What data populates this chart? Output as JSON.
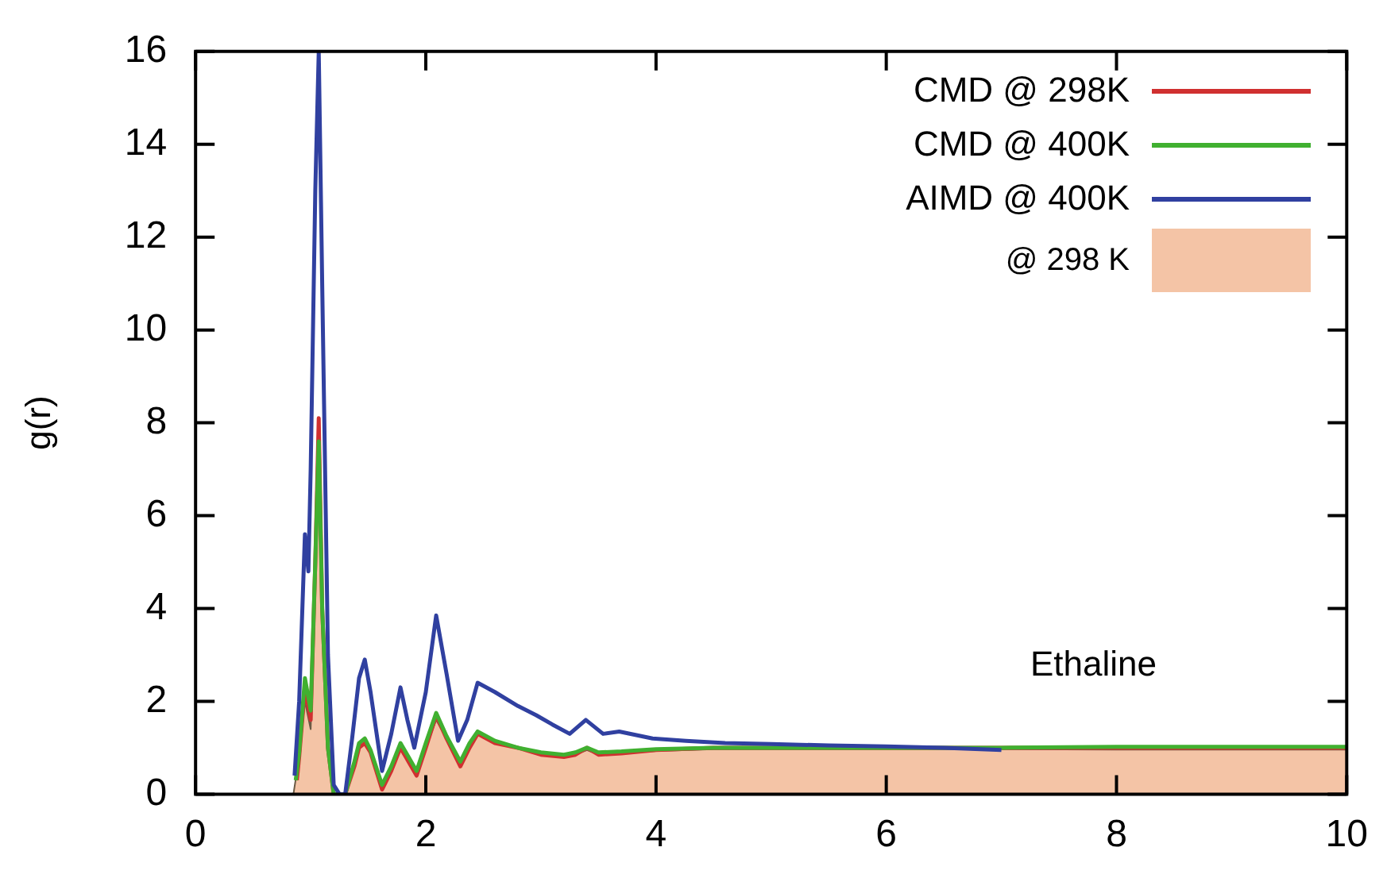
{
  "chart_data": {
    "type": "line",
    "ylabel": "g(r)",
    "xlim": [
      0,
      10
    ],
    "ylim": [
      0,
      16
    ],
    "xticks": [
      0,
      2,
      4,
      6,
      8,
      10
    ],
    "yticks": [
      0,
      2,
      4,
      6,
      8,
      10,
      12,
      14,
      16
    ],
    "legend": "top right",
    "annotations": [
      "Ethaline"
    ],
    "series": [
      {
        "name": "CMD @ 298K",
        "color": "#d03030",
        "x": [
          0.88,
          0.9,
          0.95,
          1.0,
          1.04,
          1.07,
          1.1,
          1.15,
          1.2,
          1.3,
          1.38,
          1.42,
          1.47,
          1.52,
          1.62,
          1.7,
          1.78,
          1.85,
          1.92,
          2.0,
          2.09,
          2.18,
          2.3,
          2.38,
          2.45,
          2.6,
          2.8,
          3.0,
          3.2,
          3.3,
          3.4,
          3.5,
          3.7,
          4.0,
          4.5,
          5.0,
          6.0,
          7.0,
          8.0,
          9.0,
          10.0
        ],
        "values": [
          0.3,
          0.8,
          2.3,
          1.6,
          5.0,
          8.1,
          4.0,
          1.0,
          0,
          0,
          0.6,
          1.0,
          1.1,
          0.9,
          0.1,
          0.5,
          1.0,
          0.7,
          0.4,
          1.0,
          1.7,
          1.2,
          0.6,
          1.0,
          1.3,
          1.1,
          1.0,
          0.85,
          0.8,
          0.85,
          1.0,
          0.85,
          0.88,
          0.95,
          1.0,
          1.0,
          1.0,
          1.0,
          1.0,
          1.0,
          1.0
        ]
      },
      {
        "name": "CMD @ 400K",
        "color": "#40b030",
        "x": [
          0.87,
          0.9,
          0.95,
          1.0,
          1.04,
          1.07,
          1.1,
          1.15,
          1.2,
          1.3,
          1.38,
          1.42,
          1.47,
          1.52,
          1.62,
          1.7,
          1.78,
          1.85,
          1.92,
          2.0,
          2.09,
          2.18,
          2.3,
          2.38,
          2.45,
          2.6,
          2.8,
          3.0,
          3.2,
          3.3,
          3.4,
          3.5,
          3.7,
          4.0,
          4.5,
          5.0,
          6.0,
          7.0,
          8.0,
          9.0,
          10.0
        ],
        "values": [
          0.3,
          0.9,
          2.5,
          1.8,
          5.0,
          7.6,
          4.0,
          1.0,
          0,
          0,
          0.7,
          1.1,
          1.2,
          0.95,
          0.2,
          0.6,
          1.1,
          0.8,
          0.5,
          1.1,
          1.75,
          1.25,
          0.7,
          1.1,
          1.35,
          1.15,
          1.0,
          0.9,
          0.85,
          0.9,
          1.0,
          0.9,
          0.92,
          0.97,
          1.0,
          1.0,
          1.0,
          1.0,
          1.02,
          1.02,
          1.02
        ]
      },
      {
        "name": "AIMD @ 400K",
        "color": "#3040a0",
        "x": [
          0.86,
          0.9,
          0.95,
          0.98,
          1.0,
          1.04,
          1.07,
          1.1,
          1.15,
          1.2,
          1.25,
          1.3,
          1.36,
          1.42,
          1.47,
          1.52,
          1.62,
          1.7,
          1.78,
          1.84,
          1.9,
          2.0,
          2.09,
          2.18,
          2.28,
          2.36,
          2.45,
          2.6,
          2.8,
          2.96,
          3.1,
          3.25,
          3.39,
          3.54,
          3.68,
          3.97,
          4.26,
          4.6,
          5.0,
          5.5,
          6.0,
          6.5,
          7.0
        ],
        "values": [
          0.4,
          2.0,
          5.6,
          4.8,
          7.0,
          13.0,
          16.0,
          11.0,
          3.0,
          0.2,
          0,
          0,
          1.2,
          2.5,
          2.9,
          2.2,
          0.5,
          1.3,
          2.3,
          1.6,
          1.0,
          2.2,
          3.85,
          2.6,
          1.15,
          1.6,
          2.4,
          2.2,
          1.9,
          1.7,
          1.5,
          1.3,
          1.6,
          1.3,
          1.35,
          1.2,
          1.15,
          1.1,
          1.08,
          1.05,
          1.03,
          1.0,
          0.95
        ]
      },
      {
        "name": "@ 298 K",
        "type": "area",
        "color": "#f4c4a6",
        "x": [
          0,
          0.85,
          0.9,
          0.95,
          1.0,
          1.04,
          1.07,
          1.1,
          1.15,
          1.2,
          1.3,
          1.38,
          1.42,
          1.47,
          1.52,
          1.62,
          1.7,
          1.78,
          1.85,
          1.92,
          2.0,
          2.09,
          2.18,
          2.3,
          2.38,
          2.45,
          2.6,
          2.8,
          3.0,
          3.2,
          3.3,
          3.4,
          3.5,
          3.7,
          4.0,
          4.5,
          5.0,
          6.0,
          7.0,
          8.0,
          9.0,
          10.0
        ],
        "values": [
          0,
          0,
          0.8,
          2.0,
          1.4,
          5.0,
          7.4,
          4.0,
          1.0,
          0,
          0,
          0.6,
          1.0,
          1.1,
          0.9,
          0.1,
          0.5,
          1.0,
          0.7,
          0.4,
          1.0,
          1.6,
          1.2,
          0.6,
          1.0,
          1.3,
          1.1,
          1.0,
          0.85,
          0.8,
          0.85,
          0.95,
          0.85,
          0.88,
          0.93,
          0.97,
          0.97,
          0.97,
          0.97,
          0.96,
          0.96,
          0.96
        ]
      }
    ]
  }
}
